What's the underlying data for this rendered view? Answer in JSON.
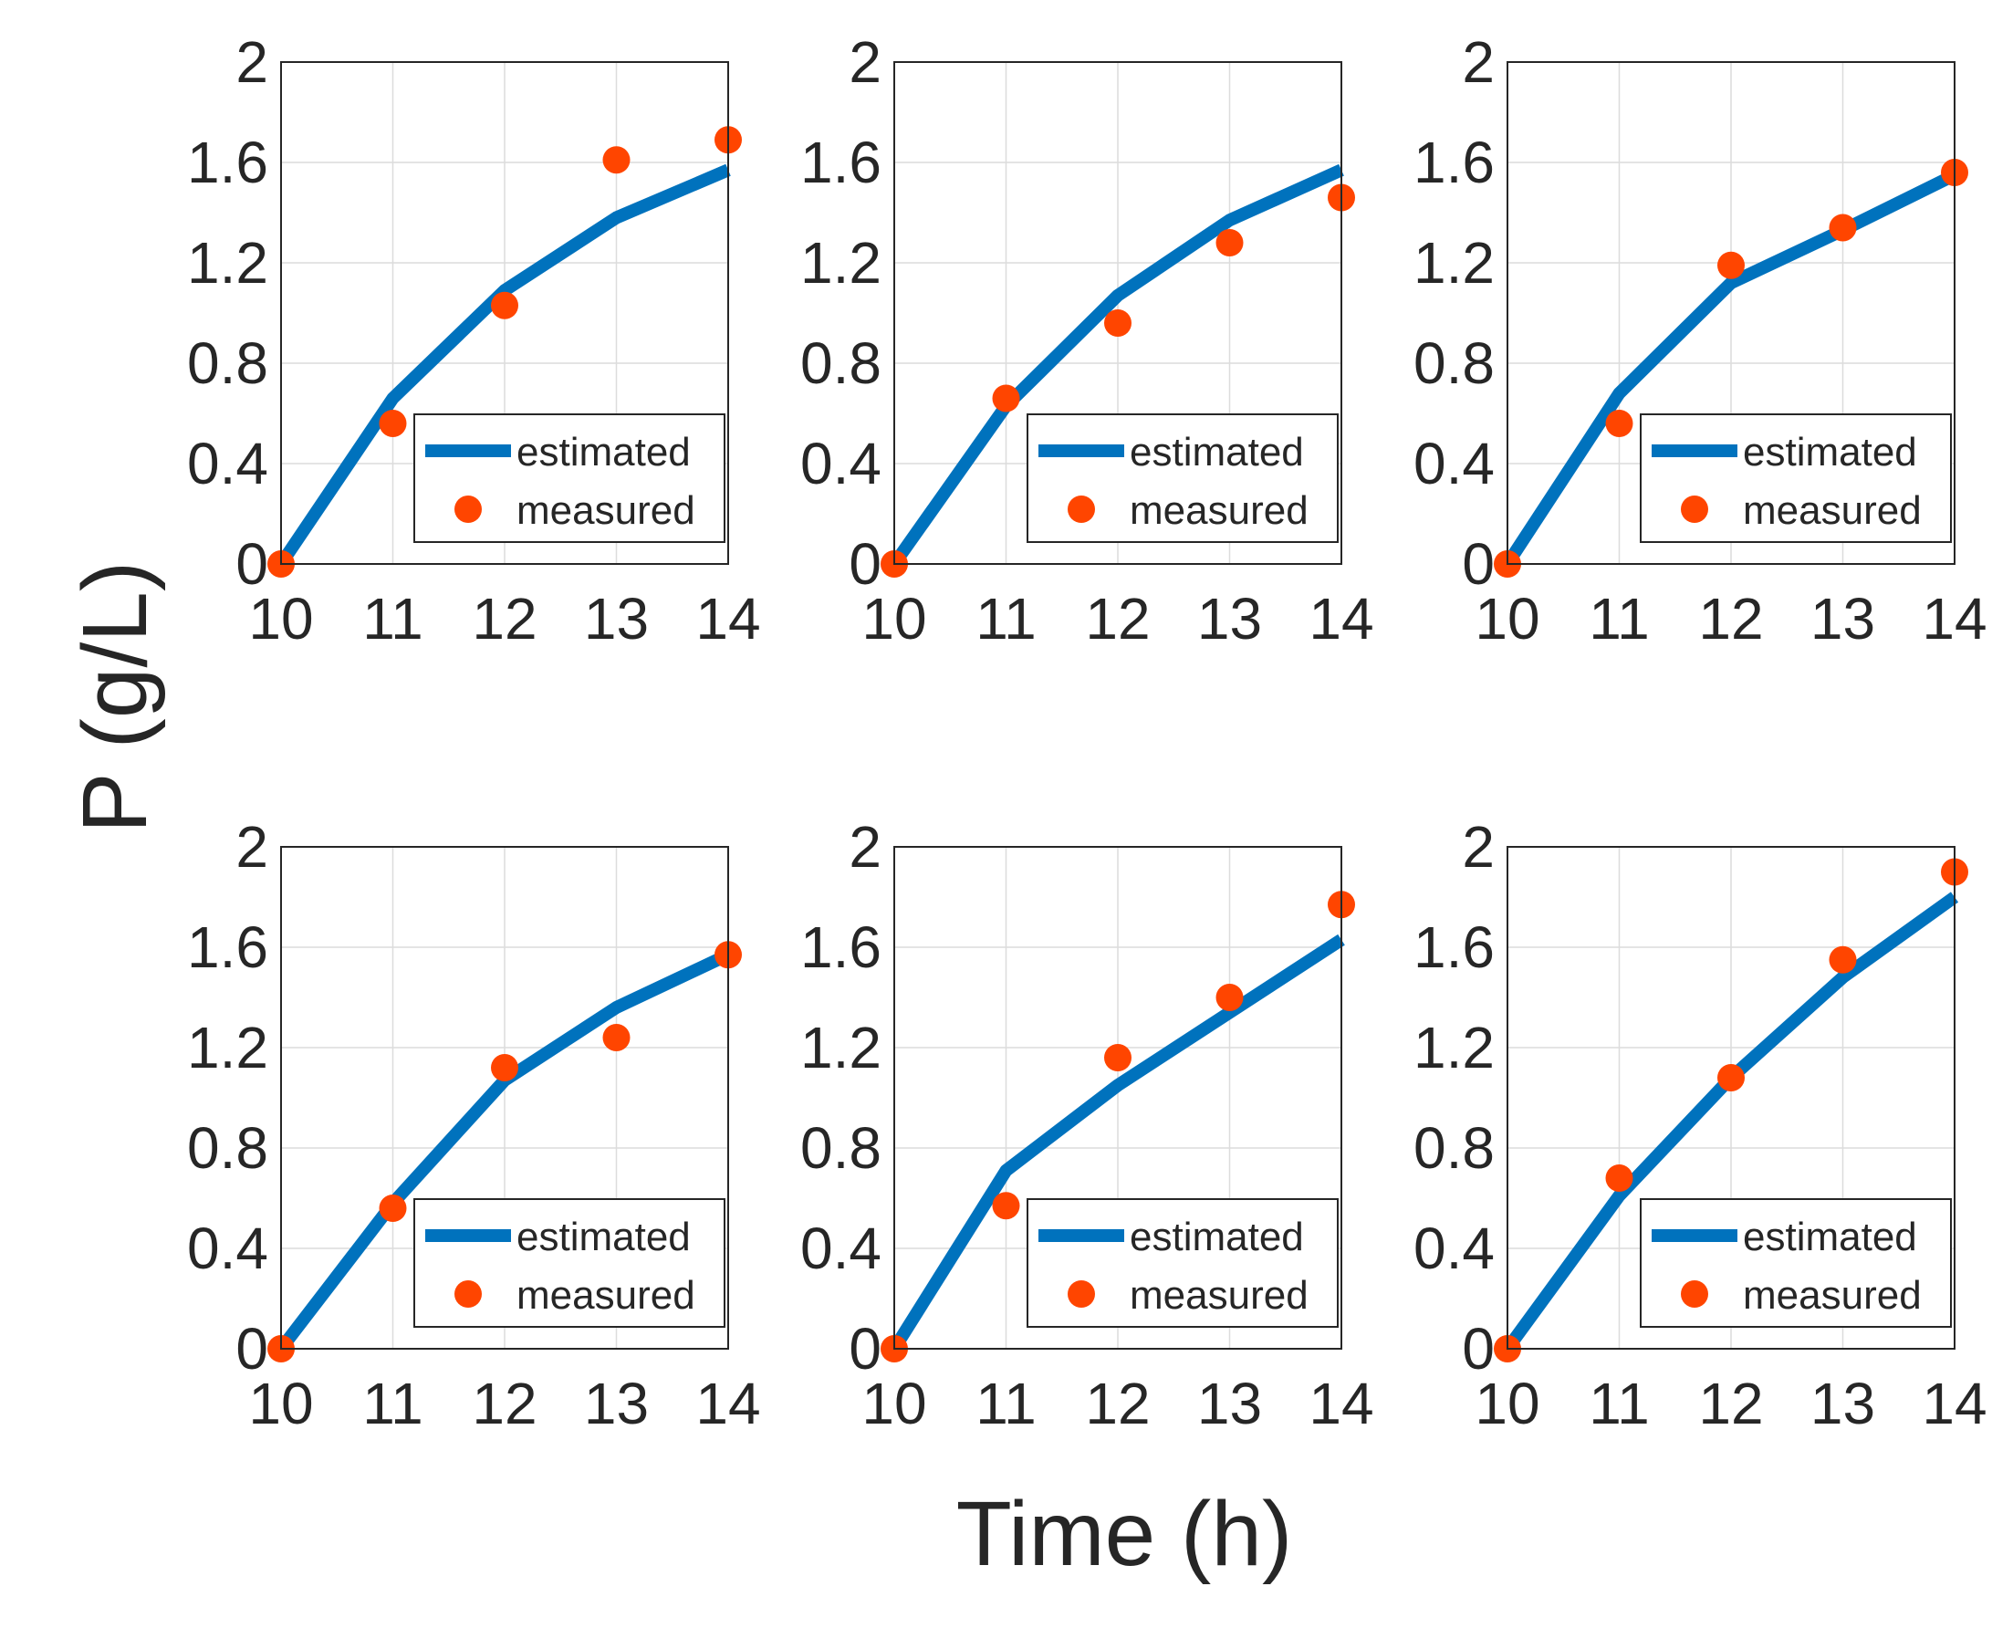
{
  "figure": {
    "xlabel": "Time (h)",
    "ylabel": "P (g/L)"
  },
  "colors": {
    "estimated": "#0072BD",
    "measured": "#FF4500",
    "grid": "#dcdcdc",
    "axis": "#262626"
  },
  "chart_data": [
    {
      "type": "line",
      "x": [
        10,
        11,
        12,
        13,
        14
      ],
      "series": [
        {
          "name": "estimated",
          "values": [
            0,
            0.66,
            1.09,
            1.38,
            1.57
          ]
        },
        {
          "name": "measured",
          "values": [
            0,
            0.56,
            1.03,
            1.61,
            1.69
          ]
        }
      ],
      "xlim": [
        10,
        14
      ],
      "ylim": [
        0,
        2
      ],
      "xticks": [
        "10",
        "11",
        "12",
        "13",
        "14"
      ],
      "yticks": [
        "0",
        "0.4",
        "0.8",
        "1.2",
        "1.6",
        "2"
      ],
      "grid": true,
      "legend": "bottom-right"
    },
    {
      "type": "line",
      "x": [
        10,
        11,
        12,
        13,
        14
      ],
      "series": [
        {
          "name": "estimated",
          "values": [
            0,
            0.63,
            1.07,
            1.37,
            1.57
          ]
        },
        {
          "name": "measured",
          "values": [
            0,
            0.66,
            0.96,
            1.28,
            1.46
          ]
        }
      ],
      "xlim": [
        10,
        14
      ],
      "ylim": [
        0,
        2
      ],
      "xticks": [
        "10",
        "11",
        "12",
        "13",
        "14"
      ],
      "yticks": [
        "0",
        "0.4",
        "0.8",
        "1.2",
        "1.6",
        "2"
      ],
      "grid": true,
      "legend": "bottom-right"
    },
    {
      "type": "line",
      "x": [
        10,
        11,
        12,
        13,
        14
      ],
      "series": [
        {
          "name": "estimated",
          "values": [
            0,
            0.68,
            1.12,
            1.33,
            1.55
          ]
        },
        {
          "name": "measured",
          "values": [
            0,
            0.56,
            1.19,
            1.34,
            1.56
          ]
        }
      ],
      "xlim": [
        10,
        14
      ],
      "ylim": [
        0,
        2
      ],
      "xticks": [
        "10",
        "11",
        "12",
        "13",
        "14"
      ],
      "yticks": [
        "0",
        "0.4",
        "0.8",
        "1.2",
        "1.6",
        "2"
      ],
      "grid": true,
      "legend": "bottom-right"
    },
    {
      "type": "line",
      "x": [
        10,
        11,
        12,
        13,
        14
      ],
      "series": [
        {
          "name": "estimated",
          "values": [
            0,
            0.58,
            1.07,
            1.36,
            1.57
          ]
        },
        {
          "name": "measured",
          "values": [
            0,
            0.56,
            1.12,
            1.24,
            1.57
          ]
        }
      ],
      "xlim": [
        10,
        14
      ],
      "ylim": [
        0,
        2
      ],
      "xticks": [
        "10",
        "11",
        "12",
        "13",
        "14"
      ],
      "yticks": [
        "0",
        "0.4",
        "0.8",
        "1.2",
        "1.6",
        "2"
      ],
      "grid": true,
      "legend": "bottom-right"
    },
    {
      "type": "line",
      "x": [
        10,
        11,
        12,
        13,
        14
      ],
      "series": [
        {
          "name": "estimated",
          "values": [
            0,
            0.71,
            1.05,
            1.34,
            1.63
          ]
        },
        {
          "name": "measured",
          "values": [
            0,
            0.57,
            1.16,
            1.4,
            1.77
          ]
        }
      ],
      "xlim": [
        10,
        14
      ],
      "ylim": [
        0,
        2
      ],
      "xticks": [
        "10",
        "11",
        "12",
        "13",
        "14"
      ],
      "yticks": [
        "0",
        "0.4",
        "0.8",
        "1.2",
        "1.6",
        "2"
      ],
      "grid": true,
      "legend": "bottom-right"
    },
    {
      "type": "line",
      "x": [
        10,
        11,
        12,
        13,
        14
      ],
      "series": [
        {
          "name": "estimated",
          "values": [
            0,
            0.61,
            1.08,
            1.48,
            1.8
          ]
        },
        {
          "name": "measured",
          "values": [
            0,
            0.68,
            1.08,
            1.55,
            1.9
          ]
        }
      ],
      "xlim": [
        10,
        14
      ],
      "ylim": [
        0,
        2
      ],
      "xticks": [
        "10",
        "11",
        "12",
        "13",
        "14"
      ],
      "yticks": [
        "0",
        "0.4",
        "0.8",
        "1.2",
        "1.6",
        "2"
      ],
      "grid": true,
      "legend": "bottom-right"
    }
  ]
}
